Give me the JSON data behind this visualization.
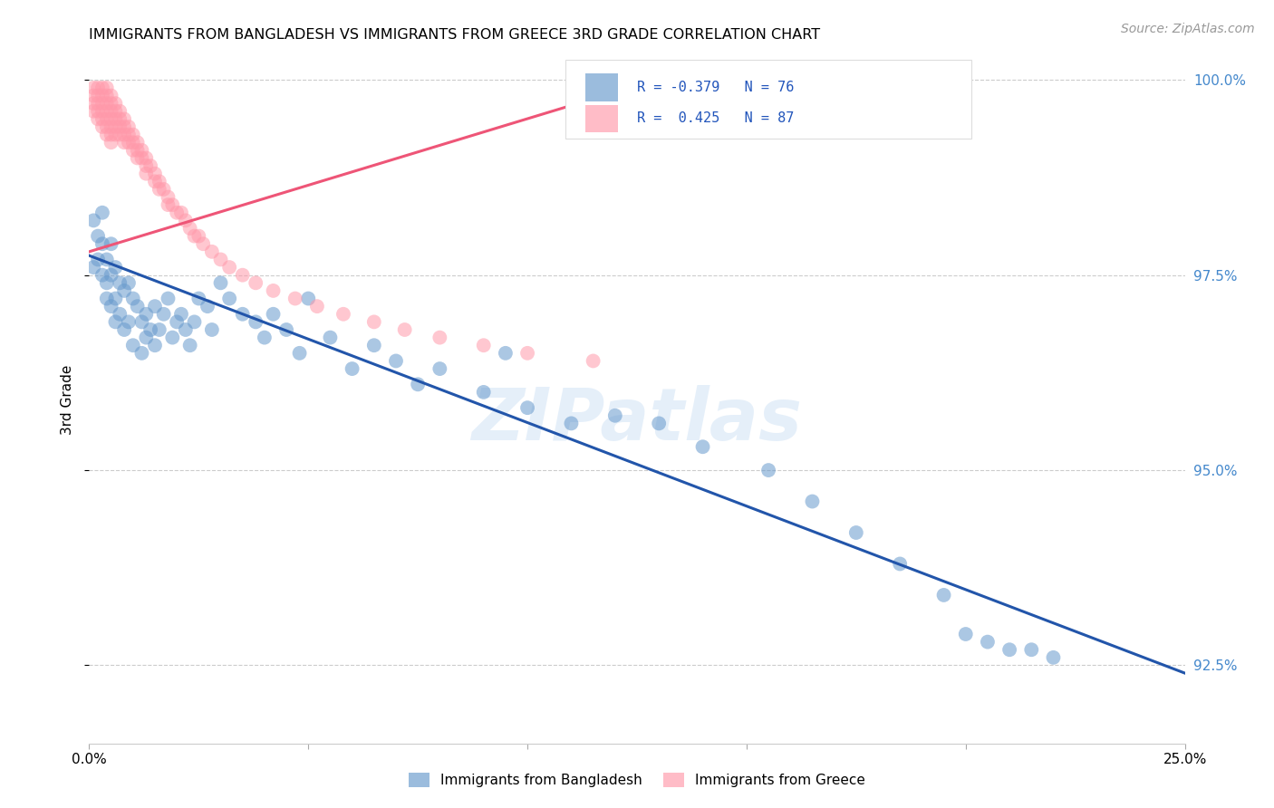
{
  "title": "IMMIGRANTS FROM BANGLADESH VS IMMIGRANTS FROM GREECE 3RD GRADE CORRELATION CHART",
  "source": "Source: ZipAtlas.com",
  "ylabel": "3rd Grade",
  "xlim": [
    0.0,
    0.25
  ],
  "ylim": [
    0.915,
    1.003
  ],
  "yticks": [
    0.925,
    0.95,
    0.975,
    1.0
  ],
  "ytick_labels": [
    "92.5%",
    "95.0%",
    "97.5%",
    "100.0%"
  ],
  "legend_blue_r": "R = -0.379",
  "legend_blue_n": "N = 76",
  "legend_pink_r": "R =  0.425",
  "legend_pink_n": "N = 87",
  "blue_color": "#6699CC",
  "pink_color": "#FF99AA",
  "blue_line_color": "#2255AA",
  "pink_line_color": "#EE5577",
  "watermark": "ZIPatlas",
  "blue_line_x": [
    0.0,
    0.25
  ],
  "blue_line_y": [
    0.9775,
    0.924
  ],
  "pink_line_x": [
    0.0,
    0.135
  ],
  "pink_line_y": [
    0.978,
    1.001
  ],
  "blue_x": [
    0.001,
    0.001,
    0.002,
    0.002,
    0.003,
    0.003,
    0.003,
    0.004,
    0.004,
    0.004,
    0.005,
    0.005,
    0.005,
    0.006,
    0.006,
    0.006,
    0.007,
    0.007,
    0.008,
    0.008,
    0.009,
    0.009,
    0.01,
    0.01,
    0.011,
    0.012,
    0.012,
    0.013,
    0.013,
    0.014,
    0.015,
    0.015,
    0.016,
    0.017,
    0.018,
    0.019,
    0.02,
    0.021,
    0.022,
    0.023,
    0.024,
    0.025,
    0.027,
    0.028,
    0.03,
    0.032,
    0.035,
    0.038,
    0.04,
    0.042,
    0.045,
    0.048,
    0.05,
    0.055,
    0.06,
    0.065,
    0.07,
    0.075,
    0.08,
    0.09,
    0.095,
    0.1,
    0.11,
    0.12,
    0.13,
    0.14,
    0.155,
    0.165,
    0.175,
    0.185,
    0.195,
    0.2,
    0.205,
    0.21,
    0.215,
    0.22
  ],
  "blue_y": [
    0.982,
    0.976,
    0.98,
    0.977,
    0.983,
    0.979,
    0.975,
    0.977,
    0.974,
    0.972,
    0.979,
    0.975,
    0.971,
    0.976,
    0.972,
    0.969,
    0.974,
    0.97,
    0.973,
    0.968,
    0.974,
    0.969,
    0.972,
    0.966,
    0.971,
    0.969,
    0.965,
    0.97,
    0.967,
    0.968,
    0.971,
    0.966,
    0.968,
    0.97,
    0.972,
    0.967,
    0.969,
    0.97,
    0.968,
    0.966,
    0.969,
    0.972,
    0.971,
    0.968,
    0.974,
    0.972,
    0.97,
    0.969,
    0.967,
    0.97,
    0.968,
    0.965,
    0.972,
    0.967,
    0.963,
    0.966,
    0.964,
    0.961,
    0.963,
    0.96,
    0.965,
    0.958,
    0.956,
    0.957,
    0.956,
    0.953,
    0.95,
    0.946,
    0.942,
    0.938,
    0.934,
    0.929,
    0.928,
    0.927,
    0.927,
    0.926
  ],
  "pink_x": [
    0.001,
    0.001,
    0.001,
    0.001,
    0.002,
    0.002,
    0.002,
    0.002,
    0.002,
    0.003,
    0.003,
    0.003,
    0.003,
    0.003,
    0.003,
    0.004,
    0.004,
    0.004,
    0.004,
    0.004,
    0.004,
    0.004,
    0.005,
    0.005,
    0.005,
    0.005,
    0.005,
    0.005,
    0.005,
    0.006,
    0.006,
    0.006,
    0.006,
    0.006,
    0.007,
    0.007,
    0.007,
    0.007,
    0.008,
    0.008,
    0.008,
    0.008,
    0.009,
    0.009,
    0.009,
    0.01,
    0.01,
    0.01,
    0.011,
    0.011,
    0.011,
    0.012,
    0.012,
    0.013,
    0.013,
    0.013,
    0.014,
    0.015,
    0.015,
    0.016,
    0.016,
    0.017,
    0.018,
    0.018,
    0.019,
    0.02,
    0.021,
    0.022,
    0.023,
    0.024,
    0.025,
    0.026,
    0.028,
    0.03,
    0.032,
    0.035,
    0.038,
    0.042,
    0.047,
    0.052,
    0.058,
    0.065,
    0.072,
    0.08,
    0.09,
    0.1,
    0.115
  ],
  "pink_y": [
    0.999,
    0.998,
    0.997,
    0.996,
    0.999,
    0.998,
    0.997,
    0.996,
    0.995,
    0.999,
    0.998,
    0.997,
    0.996,
    0.995,
    0.994,
    0.999,
    0.998,
    0.997,
    0.996,
    0.995,
    0.994,
    0.993,
    0.998,
    0.997,
    0.996,
    0.995,
    0.994,
    0.993,
    0.992,
    0.997,
    0.996,
    0.995,
    0.994,
    0.993,
    0.996,
    0.995,
    0.994,
    0.993,
    0.995,
    0.994,
    0.993,
    0.992,
    0.994,
    0.993,
    0.992,
    0.993,
    0.992,
    0.991,
    0.992,
    0.991,
    0.99,
    0.991,
    0.99,
    0.99,
    0.989,
    0.988,
    0.989,
    0.988,
    0.987,
    0.987,
    0.986,
    0.986,
    0.985,
    0.984,
    0.984,
    0.983,
    0.983,
    0.982,
    0.981,
    0.98,
    0.98,
    0.979,
    0.978,
    0.977,
    0.976,
    0.975,
    0.974,
    0.973,
    0.972,
    0.971,
    0.97,
    0.969,
    0.968,
    0.967,
    0.966,
    0.965,
    0.964
  ]
}
